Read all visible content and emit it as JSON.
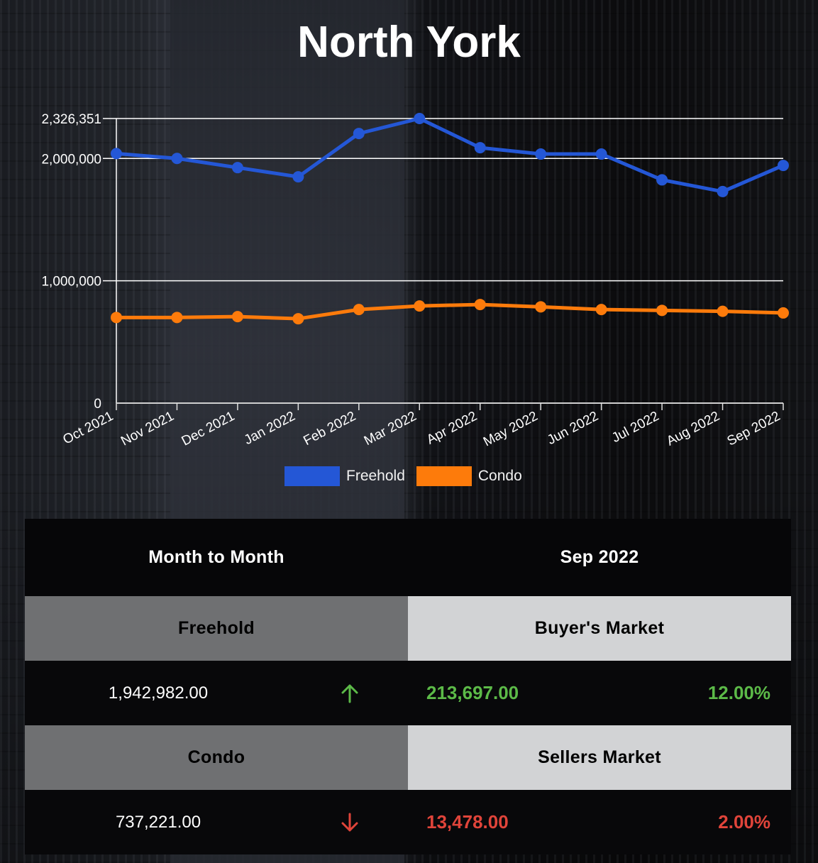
{
  "title": "North York",
  "chart_data": {
    "type": "line",
    "title": "North York",
    "xlabel": "",
    "ylabel": "",
    "categories": [
      "Oct 2021",
      "Nov 2021",
      "Dec 2021",
      "Jan 2022",
      "Feb 2022",
      "Mar 2022",
      "Apr 2022",
      "May 2022",
      "Jun 2022",
      "Jul 2022",
      "Aug 2022",
      "Sep 2022"
    ],
    "series": [
      {
        "name": "Freehold",
        "color": "#2457d6",
        "values": [
          2040000,
          2000000,
          1925000,
          1850000,
          2204000,
          2326351,
          2088000,
          2036000,
          2036000,
          1825000,
          1729285,
          1942982
        ]
      },
      {
        "name": "Condo",
        "color": "#fd7b0b",
        "values": [
          700000,
          700000,
          707000,
          690000,
          765000,
          794000,
          806000,
          787000,
          765000,
          758000,
          750699,
          737221
        ]
      }
    ],
    "yticks": [
      0,
      1000000,
      2000000,
      2326351
    ],
    "ytick_labels": [
      "0",
      "1,000,000",
      "2,000,000",
      "2,326,351"
    ],
    "ylim": [
      0,
      2326351
    ],
    "grid": true,
    "legend_position": "bottom"
  },
  "legend": {
    "items": [
      {
        "label": "Freehold",
        "color": "#2457d6"
      },
      {
        "label": "Condo",
        "color": "#fd7b0b"
      }
    ]
  },
  "table": {
    "header": {
      "left": "Month to Month",
      "right": "Sep 2022"
    },
    "freehold": {
      "label": "Freehold",
      "market": "Buyer's Market",
      "value": "1,942,982.00",
      "direction_icon": "arrow-up-icon",
      "change": "213,697.00",
      "percent": "12.00%",
      "color": "#5cba48"
    },
    "condo": {
      "label": "Condo",
      "market": "Sellers Market",
      "value": "737,221.00",
      "direction_icon": "arrow-down-icon",
      "change": "13,478.00",
      "percent": "2.00%",
      "color": "#e0443a"
    }
  }
}
